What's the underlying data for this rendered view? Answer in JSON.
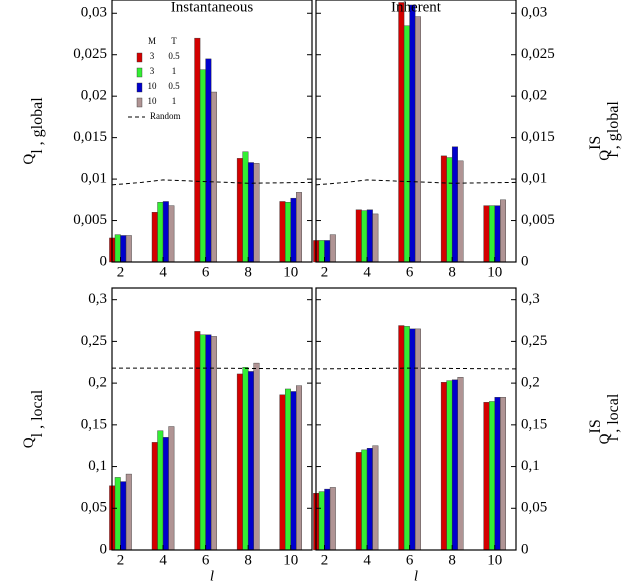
{
  "chart_data": [
    {
      "type": "bar",
      "title": "Instantaneous",
      "ylabel": {
        "main": "Q",
        "sub": "l , global"
      },
      "x": [
        2,
        4,
        6,
        8,
        10
      ],
      "xlim": [
        1.6,
        11
      ],
      "xticks": [
        2,
        4,
        6,
        8,
        10
      ],
      "ylim": [
        0,
        0.0316
      ],
      "yticks": [
        0,
        {
          "value": 0.005,
          "label": "0,005"
        },
        {
          "value": 0.01,
          "label": "0,01"
        },
        {
          "value": 0.015,
          "label": "0,015"
        },
        {
          "value": 0.02,
          "label": "0,02"
        },
        {
          "value": 0.025,
          "label": "0,025"
        },
        {
          "value": 0.03,
          "label": "0,03"
        }
      ],
      "legend_header": [
        "M",
        "T"
      ],
      "series": [
        {
          "m": "3",
          "t": "0.5",
          "color": "#d40000",
          "values": [
            0.0029,
            0.006,
            0.027,
            0.0125,
            0.0073
          ]
        },
        {
          "m": "3",
          "t": "1",
          "color": "#33ee33",
          "values": [
            0.0033,
            0.0072,
            0.0232,
            0.0133,
            0.0072
          ]
        },
        {
          "m": "10",
          "t": "0.5",
          "color": "#0000cc",
          "values": [
            0.0032,
            0.0073,
            0.0245,
            0.012,
            0.0077
          ]
        },
        {
          "m": "10",
          "t": "1",
          "color": "#b09494",
          "values": [
            0.0032,
            0.0068,
            0.0205,
            0.0119,
            0.0084
          ]
        }
      ],
      "random": {
        "name": "Random",
        "x": [
          1.6,
          3,
          4,
          6,
          8,
          11
        ],
        "values": [
          0.0093,
          0.0096,
          0.0099,
          0.0097,
          0.0095,
          0.0096
        ]
      }
    },
    {
      "type": "bar",
      "title": "Inherent",
      "ylabel": {
        "main": "Q",
        "sub": "l , global",
        "sup": "IS"
      },
      "x": [
        2,
        4,
        6,
        8,
        10
      ],
      "xlim": [
        1.6,
        11
      ],
      "xticks": [
        2,
        4,
        6,
        8,
        10
      ],
      "ylim": [
        0,
        0.0316
      ],
      "yticks": [
        0,
        {
          "value": 0.005,
          "label": "0,005"
        },
        {
          "value": 0.01,
          "label": "0,01"
        },
        {
          "value": 0.015,
          "label": "0,015"
        },
        {
          "value": 0.02,
          "label": "0,02"
        },
        {
          "value": 0.025,
          "label": "0,025"
        },
        {
          "value": 0.03,
          "label": "0,03"
        }
      ],
      "series": [
        {
          "color": "#d40000",
          "values": [
            0.0026,
            0.0063,
            0.0313,
            0.0128,
            0.0068
          ]
        },
        {
          "color": "#33ee33",
          "values": [
            0.0026,
            0.0062,
            0.0285,
            0.0126,
            0.0068
          ]
        },
        {
          "color": "#0000cc",
          "values": [
            0.0026,
            0.0063,
            0.031,
            0.0139,
            0.0068
          ]
        },
        {
          "color": "#b09494",
          "values": [
            0.0033,
            0.0058,
            0.0296,
            0.0122,
            0.0075
          ]
        }
      ],
      "random": {
        "x": [
          1.6,
          3,
          4,
          6,
          8,
          11
        ],
        "values": [
          0.0093,
          0.0096,
          0.0099,
          0.0097,
          0.0095,
          0.0096
        ]
      }
    },
    {
      "type": "bar",
      "xlabel": "l",
      "ylabel": {
        "main": "Q",
        "sub": "l , local"
      },
      "x": [
        2,
        4,
        6,
        8,
        10
      ],
      "xlim": [
        1.6,
        11
      ],
      "xticks": [
        2,
        4,
        6,
        8,
        10
      ],
      "ylim": [
        0,
        0.314
      ],
      "yticks": [
        0,
        {
          "value": 0.05,
          "label": "0,05"
        },
        {
          "value": 0.1,
          "label": "0,1"
        },
        {
          "value": 0.15,
          "label": "0,15"
        },
        {
          "value": 0.2,
          "label": "0,2"
        },
        {
          "value": 0.25,
          "label": "0,25"
        },
        {
          "value": 0.3,
          "label": "0,3"
        }
      ],
      "series": [
        {
          "color": "#d40000",
          "values": [
            0.077,
            0.129,
            0.262,
            0.211,
            0.186
          ]
        },
        {
          "color": "#33ee33",
          "values": [
            0.087,
            0.143,
            0.258,
            0.219,
            0.193
          ]
        },
        {
          "color": "#0000cc",
          "values": [
            0.082,
            0.135,
            0.258,
            0.214,
            0.19
          ]
        },
        {
          "color": "#b09494",
          "values": [
            0.091,
            0.148,
            0.256,
            0.224,
            0.197
          ]
        }
      ],
      "random": {
        "x": [
          1.6,
          6,
          11
        ],
        "values": [
          0.218,
          0.218,
          0.217
        ]
      }
    },
    {
      "type": "bar",
      "xlabel": "l",
      "ylabel": {
        "main": "Q",
        "sub": "l , local",
        "sup": "IS"
      },
      "x": [
        2,
        4,
        6,
        8,
        10
      ],
      "xlim": [
        1.6,
        11
      ],
      "xticks": [
        2,
        4,
        6,
        8,
        10
      ],
      "ylim": [
        0,
        0.314
      ],
      "yticks": [
        0,
        {
          "value": 0.05,
          "label": "0,05"
        },
        {
          "value": 0.1,
          "label": "0,1"
        },
        {
          "value": 0.15,
          "label": "0,15"
        },
        {
          "value": 0.2,
          "label": "0,2"
        },
        {
          "value": 0.25,
          "label": "0,25"
        },
        {
          "value": 0.3,
          "label": "0,3"
        }
      ],
      "series": [
        {
          "color": "#d40000",
          "values": [
            0.068,
            0.117,
            0.269,
            0.201,
            0.177
          ]
        },
        {
          "color": "#33ee33",
          "values": [
            0.07,
            0.12,
            0.268,
            0.203,
            0.178
          ]
        },
        {
          "color": "#0000cc",
          "values": [
            0.073,
            0.122,
            0.265,
            0.204,
            0.183
          ]
        },
        {
          "color": "#b09494",
          "values": [
            0.075,
            0.125,
            0.265,
            0.207,
            0.183
          ]
        }
      ],
      "random": {
        "x": [
          1.6,
          6,
          11
        ],
        "values": [
          0.217,
          0.218,
          0.217
        ]
      }
    }
  ]
}
